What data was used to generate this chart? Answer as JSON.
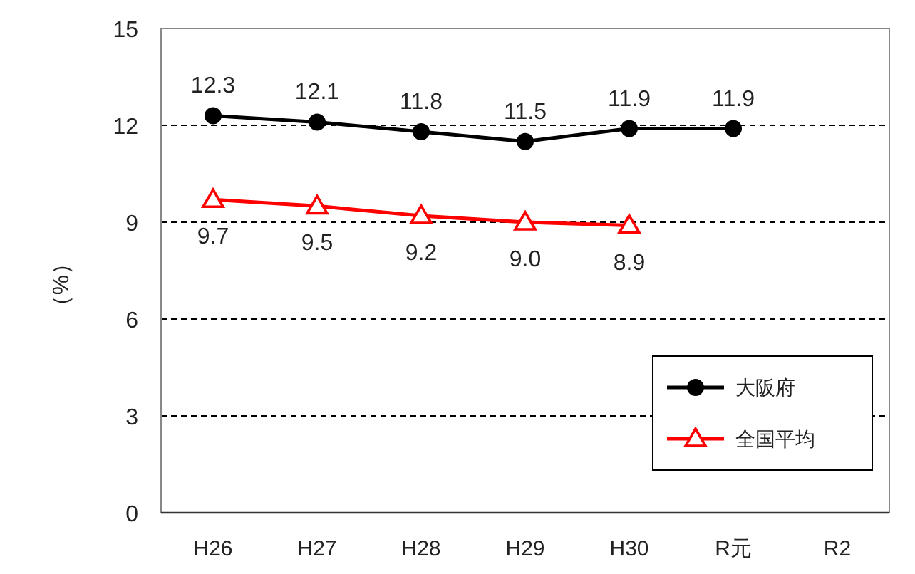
{
  "chart_data": {
    "type": "line",
    "ylabel": "（%）",
    "categories": [
      "H26",
      "H27",
      "H28",
      "H29",
      "H30",
      "R元",
      "R2"
    ],
    "series": [
      {
        "name": "大阪府",
        "color": "#000000",
        "marker": "circle",
        "values": [
          12.3,
          12.1,
          11.8,
          11.5,
          11.9,
          11.9,
          null
        ],
        "value_labels": [
          "12.3",
          "12.1",
          "11.8",
          "11.5",
          "11.9",
          "11.9",
          null
        ]
      },
      {
        "name": "全国平均",
        "color": "#ff0000",
        "marker": "triangle",
        "values": [
          9.7,
          9.5,
          9.2,
          9.0,
          8.9,
          null,
          null
        ],
        "value_labels": [
          "9.7",
          "9.5",
          "9.2",
          "9.0",
          "8.9",
          null,
          null
        ]
      }
    ],
    "ylim": [
      0,
      15
    ],
    "yticks": [
      0,
      3,
      6,
      9,
      12,
      15
    ],
    "grid": "y",
    "legend": "bottom right",
    "line_style": "solid"
  }
}
